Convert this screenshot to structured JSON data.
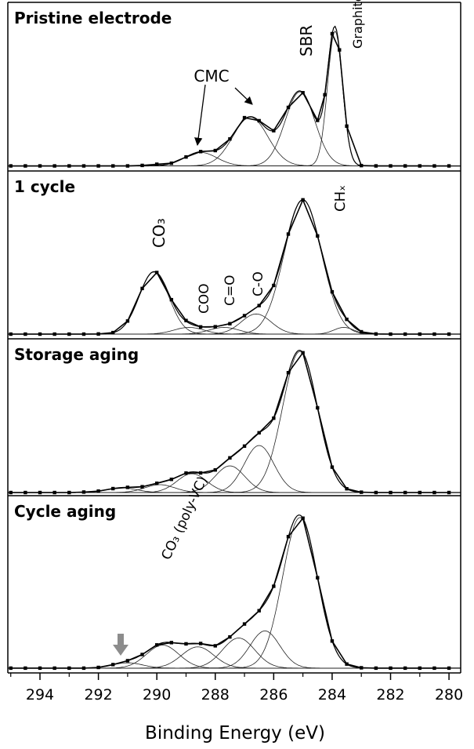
{
  "chart_data": [
    {
      "type": "line",
      "title": "Pristine electrode",
      "annotations": [
        "CMC",
        "SBR",
        "Graphite"
      ],
      "x": [
        295,
        294.5,
        294,
        293.5,
        293,
        292.5,
        292,
        291.5,
        291,
        290.5,
        290,
        289.5,
        289,
        288.5,
        288,
        287.5,
        287,
        286.5,
        286,
        285.5,
        285,
        284.5,
        284.25,
        284,
        283.75,
        283.5,
        283,
        282.5,
        282,
        281.5,
        281,
        280.5,
        280
      ],
      "values": [
        3,
        3,
        3,
        3,
        3,
        3,
        3,
        3,
        3,
        3.3,
        4,
        4.6,
        8.3,
        11.5,
        12.1,
        19,
        31.6,
        29.8,
        23.9,
        37.7,
        46.4,
        30,
        45.2,
        81.4,
        71.8,
        26.6,
        3.2,
        3,
        3,
        3,
        3,
        3,
        3
      ],
      "baseline": 3,
      "peaks": [
        {
          "center": 288.5,
          "height": 8,
          "fwhm": 1.3
        },
        {
          "center": 286.8,
          "height": 29,
          "fwhm": 1.4
        },
        {
          "center": 285.1,
          "height": 44,
          "fwhm": 1.2
        },
        {
          "center": 283.9,
          "height": 80,
          "fwhm": 0.6
        }
      ],
      "xlim": [
        295.1,
        279.6
      ],
      "ylim": [
        0,
        100
      ]
    },
    {
      "type": "line",
      "title": "1 cycle",
      "annotations": [
        "CO₃",
        "COO",
        "C=O",
        "C-O",
        "CHₓ"
      ],
      "x": [
        295,
        294.5,
        294,
        293.5,
        293,
        292.5,
        292,
        291.5,
        291,
        290.5,
        290,
        289.5,
        289,
        288.5,
        288,
        287.5,
        287,
        286.5,
        286,
        285.5,
        285,
        284.5,
        284,
        283.5,
        283,
        282.5,
        282,
        281.5,
        281,
        280.5,
        280
      ],
      "values": [
        2.8,
        2.8,
        2.8,
        2.8,
        2.8,
        2.8,
        2.9,
        3.7,
        10.6,
        30,
        39.5,
        23.3,
        10.9,
        7.1,
        7.2,
        9,
        13.8,
        19.8,
        31.8,
        62.4,
        82.8,
        61.3,
        28,
        11.6,
        4.2,
        2.9,
        2.8,
        2.8,
        2.8,
        2.8,
        2.8
      ],
      "baseline": 2.8,
      "peaks": [
        {
          "center": 290.1,
          "height": 37,
          "fwhm": 1.2
        },
        {
          "center": 288.9,
          "height": 4,
          "fwhm": 1.2
        },
        {
          "center": 287.7,
          "height": 4,
          "fwhm": 1.2
        },
        {
          "center": 286.6,
          "height": 12,
          "fwhm": 1.2
        },
        {
          "center": 285.0,
          "height": 80,
          "fwhm": 1.5
        },
        {
          "center": 283.6,
          "height": 4,
          "fwhm": 0.8
        }
      ],
      "xlim": [
        295.1,
        279.6
      ],
      "ylim": [
        0,
        100
      ]
    },
    {
      "type": "line",
      "title": "Storage aging",
      "annotations": [],
      "x": [
        295,
        294.5,
        294,
        293.5,
        293,
        292.5,
        292,
        291.5,
        291,
        290.5,
        290,
        289.5,
        289,
        288.5,
        288,
        287.5,
        287,
        286.5,
        286,
        285.5,
        285,
        284.5,
        284,
        283.5,
        283,
        282.5,
        282,
        281.5,
        281,
        280.5,
        280
      ],
      "values": [
        2,
        2,
        2,
        2,
        2,
        2.3,
        2.9,
        4.5,
        5.3,
        5.7,
        7.9,
        10.4,
        14.4,
        14.5,
        16.4,
        24.1,
        31.6,
        40.1,
        49.4,
        78.4,
        91.1,
        56,
        18.2,
        4.4,
        2.2,
        2,
        2,
        2,
        2,
        2,
        2
      ],
      "baseline": 2,
      "peaks": [
        {
          "center": 291.2,
          "height": 3,
          "fwhm": 1.2
        },
        {
          "center": 289.9,
          "height": 5,
          "fwhm": 1.2
        },
        {
          "center": 288.8,
          "height": 12,
          "fwhm": 1.2
        },
        {
          "center": 287.5,
          "height": 17,
          "fwhm": 1.2
        },
        {
          "center": 286.5,
          "height": 30,
          "fwhm": 1.2
        },
        {
          "center": 285.1,
          "height": 90,
          "fwhm": 1.4
        }
      ],
      "xlim": [
        295.1,
        279.6
      ],
      "ylim": [
        0,
        100
      ]
    },
    {
      "type": "line",
      "title": "Cycle aging",
      "annotations": [
        "CO₃ (poly-VC)"
      ],
      "x": [
        295,
        294.5,
        294,
        293.5,
        293,
        292.5,
        292,
        291.5,
        291,
        290.5,
        290,
        289.5,
        289,
        288.5,
        288,
        287.5,
        287,
        286.5,
        286,
        285.5,
        285,
        284.5,
        284,
        283.5,
        283,
        282.5,
        282,
        281.5,
        281,
        280.5,
        280
      ],
      "values": [
        2.7,
        2.7,
        2.7,
        2.7,
        2.7,
        2.7,
        3.1,
        4.7,
        6.9,
        10.4,
        15.8,
        17.1,
        16.4,
        16.6,
        15.3,
        20.3,
        27.6,
        35.1,
        48.9,
        76.9,
        87.3,
        53.7,
        18,
        5,
        2.9,
        2.7,
        2.7,
        2.7,
        2.7,
        2.7,
        2.7
      ],
      "baseline": 2.7,
      "peaks": [
        {
          "center": 291.0,
          "height": 3,
          "fwhm": 1.2
        },
        {
          "center": 289.8,
          "height": 13,
          "fwhm": 1.3
        },
        {
          "center": 288.6,
          "height": 12,
          "fwhm": 1.3
        },
        {
          "center": 287.2,
          "height": 17,
          "fwhm": 1.3
        },
        {
          "center": 286.3,
          "height": 21,
          "fwhm": 1.2
        },
        {
          "center": 285.1,
          "height": 85,
          "fwhm": 1.4
        }
      ],
      "xlim": [
        295.1,
        279.6
      ],
      "ylim": [
        0,
        100
      ],
      "xlabel": "Binding Energy (eV)",
      "xticks": [
        294,
        292,
        290,
        288,
        286,
        284,
        282,
        280
      ],
      "xminor_ticks": [
        295,
        293,
        291,
        289,
        287,
        285,
        283,
        281
      ]
    }
  ]
}
